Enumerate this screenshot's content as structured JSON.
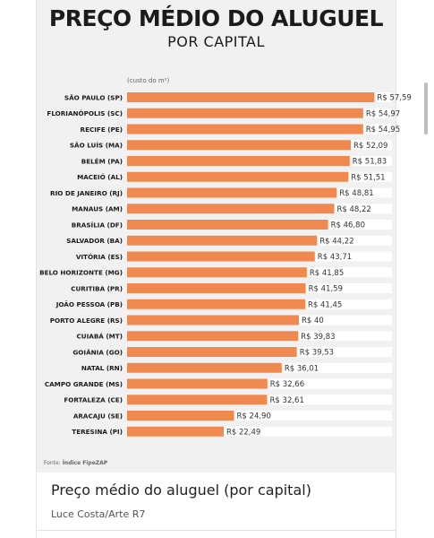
{
  "figure": {
    "title": "PREÇO MÉDIO DO ALUGUEL",
    "subtitle": "POR CAPITAL",
    "unit_note": "(custo do m²)",
    "source_label": "Fonte: ",
    "source_name": "Índice FipeZAP"
  },
  "caption": {
    "title": "Preço médio do aluguel (por capital)",
    "credit": "Luce Costa/Arte R7"
  },
  "colors": {
    "bar": "#f0894f",
    "track": "#ffffff",
    "text": "#1b1b1b"
  },
  "chart_data": {
    "type": "bar",
    "orientation": "horizontal",
    "title": "PREÇO MÉDIO DO ALUGUEL",
    "subtitle": "POR CAPITAL",
    "ylabel": "(custo do m²)",
    "xlim": [
      0,
      60
    ],
    "grid": false,
    "categories": [
      "SÃO PAULO (SP)",
      "FLORIANÓPOLIS (SC)",
      "RECIFE (PE)",
      "SÃO LUÍS (MA)",
      "BELÉM (PA)",
      "MACEIÓ (AL)",
      "RIO DE JANEIRO (RJ)",
      "MANAUS (AM)",
      "BRASÍLIA (DF)",
      "SALVADOR (BA)",
      "VITÓRIA (ES)",
      "BELO HORIZONTE (MG)",
      "CURITIBA (PR)",
      "JOÃO PESSOA (PB)",
      "PORTO ALEGRE (RS)",
      "CUIABÁ (MT)",
      "GOIÂNIA (GO)",
      "NATAL (RN)",
      "CAMPO GRANDE (MS)",
      "FORTALEZA (CE)",
      "ARACAJU (SE)",
      "TERESINA (PI)"
    ],
    "values": [
      57.59,
      54.97,
      54.95,
      52.09,
      51.83,
      51.51,
      48.81,
      48.22,
      46.8,
      44.22,
      43.71,
      41.85,
      41.59,
      41.45,
      40,
      39.83,
      39.53,
      36.01,
      32.66,
      32.61,
      24.9,
      22.49
    ],
    "value_labels": [
      "R$ 57,59",
      "R$ 54,97",
      "R$ 54,95",
      "R$ 52,09",
      "R$ 51,83",
      "R$ 51,51",
      "R$ 48,81",
      "R$ 48,22",
      "R$ 46,80",
      "R$ 44,22",
      "R$ 43,71",
      "R$ 41,85",
      "R$ 41,59",
      "R$ 41,45",
      "R$ 40",
      "R$ 39,83",
      "R$ 39,53",
      "R$ 36,01",
      "R$ 32,66",
      "R$ 32,61",
      "R$ 24,90",
      "R$ 22,49"
    ]
  }
}
